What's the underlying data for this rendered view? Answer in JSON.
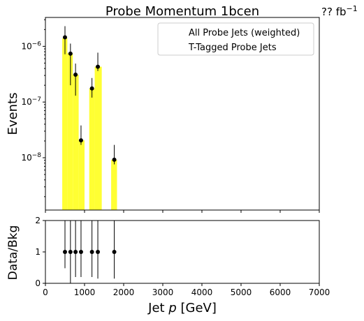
{
  "chart_data": [
    {
      "type": "bar",
      "title": "Probe Momentum 1bcen",
      "lumi_label": "?? fb",
      "lumi_sup": "−1",
      "xlabel_prefix": "Jet ",
      "xlabel_italic": "p",
      "xlabel_suffix": " [GeV]",
      "ylabel": "Events",
      "yscale": "log",
      "xlim": [
        0,
        7000
      ],
      "ylim": [
        1.15e-09,
        3.3e-06
      ],
      "ytick_labels": [
        {
          "base": "10",
          "exp": "−6",
          "value": 1e-06
        },
        {
          "base": "10",
          "exp": "−7",
          "value": 1e-07
        },
        {
          "base": "10",
          "exp": "−8",
          "value": 1e-08
        }
      ],
      "legend_position": "top-right",
      "legend": [
        "All Probe Jets (weighted)",
        "T-Tagged Probe Jets"
      ],
      "bar_color": "#ffff33",
      "bars": [
        {
          "x0": 430,
          "x1": 560,
          "value": 1.4e-06
        },
        {
          "x0": 560,
          "x1": 700,
          "value": 7.5e-07
        },
        {
          "x0": 700,
          "x1": 850,
          "value": 3.1e-07
        },
        {
          "x0": 850,
          "x1": 1000,
          "value": 2.05e-08
        },
        {
          "x0": 1120,
          "x1": 1260,
          "value": 1.75e-07
        },
        {
          "x0": 1260,
          "x1": 1440,
          "value": 4.3e-07
        },
        {
          "x0": 1680,
          "x1": 1830,
          "value": 9.2e-09
        }
      ],
      "series": [
        {
          "marker": "point",
          "x": [
            500,
            640,
            770,
            910,
            1190,
            1340,
            1760
          ],
          "y": [
            1.45e-06,
            7.4e-07,
            3.1e-07,
            2.05e-08,
            1.75e-07,
            4.3e-07,
            9.2e-09
          ],
          "yerr_low": [
            7.2e-07,
            2e-07,
            1.3e-07,
            1.7e-08,
            1.2e-07,
            3.6e-07,
            7.6e-09
          ],
          "yerr_high": [
            2.3e-06,
            1.12e-06,
            4.9e-07,
            3.8e-08,
            2.7e-07,
            7.7e-07,
            1.7e-08
          ]
        }
      ]
    },
    {
      "type": "scatter",
      "ylabel": "Data/Bkg",
      "xlabel_prefix": "Jet ",
      "xlabel_italic": "p",
      "xlabel_suffix": " [GeV]",
      "xlim": [
        0,
        7000
      ],
      "ylim": [
        0,
        2
      ],
      "xticks": [
        0,
        1000,
        2000,
        3000,
        4000,
        5000,
        6000,
        7000
      ],
      "yticks": [
        0,
        1,
        2
      ],
      "series": [
        {
          "marker": "point",
          "x": [
            500,
            640,
            770,
            910,
            1190,
            1340,
            1760
          ],
          "y": [
            1,
            1,
            1,
            1,
            1,
            1,
            1
          ],
          "yerr_low": [
            0.48,
            0,
            0.2,
            0.2,
            0.2,
            0.15,
            0.15
          ],
          "yerr_high": [
            2,
            2,
            2,
            2,
            2,
            2,
            2
          ]
        }
      ]
    }
  ]
}
